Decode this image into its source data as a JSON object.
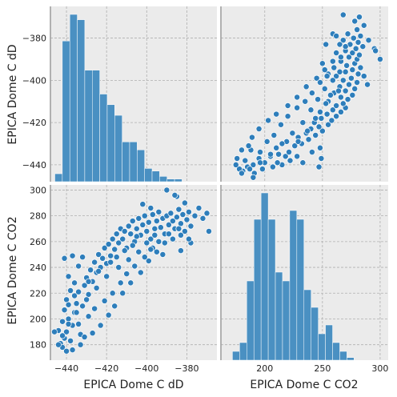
{
  "chart_data": {
    "type": "pairplot",
    "variables": [
      "EPICA Dome C dD",
      "EPICA Dome C CO2"
    ],
    "grid": true,
    "colors": {
      "bar": "#4a90c2",
      "point": "#2e7ebb",
      "panel": "#ebebeb"
    },
    "dD_axis": {
      "label": "EPICA Dome C dD",
      "lim": [
        -448,
        -365
      ],
      "ticks": [
        -440,
        -420,
        -400,
        -380
      ],
      "tick_labels": [
        "−440",
        "−420",
        "−400",
        "−380"
      ]
    },
    "co2_axis": {
      "label": "EPICA Dome C CO2",
      "lim": [
        168,
        304
      ],
      "ticks": [
        180,
        200,
        220,
        240,
        260,
        280,
        300
      ],
      "tick_labels": [
        "180",
        "200",
        "220",
        "240",
        "260",
        "280",
        "300"
      ],
      "x_ticks": [
        200,
        250,
        300
      ],
      "x_tick_labels": [
        "200",
        "250",
        "300"
      ],
      "x_lim": [
        162,
        307
      ]
    },
    "dD_histogram": {
      "bin_start": -445.8,
      "bin_width": 3.73,
      "counts": [
        3,
        53,
        63,
        61,
        42,
        42,
        33,
        29,
        25,
        15,
        15,
        12,
        5,
        4,
        2,
        1,
        1
      ]
    },
    "co2_histogram": {
      "bin_start": 172,
      "bin_width": 6.2,
      "counts": [
        1,
        2,
        9,
        16,
        19,
        16,
        10,
        9,
        17,
        16,
        8,
        6,
        3,
        4,
        2,
        1,
        0.3
      ]
    },
    "scatter_note_none": "",
    "scatter_points": [
      [
        -443,
        181
      ],
      [
        -442,
        178
      ],
      [
        -441,
        185
      ],
      [
        -440,
        190
      ],
      [
        -438,
        183
      ],
      [
        -437,
        195
      ],
      [
        -444,
        191
      ],
      [
        -439,
        200
      ],
      [
        -436,
        205
      ],
      [
        -434,
        196
      ],
      [
        -432,
        210
      ],
      [
        -433,
        188
      ],
      [
        -441,
        207
      ],
      [
        -440,
        215
      ],
      [
        -438,
        222
      ],
      [
        -436,
        218
      ],
      [
        -435,
        212
      ],
      [
        -431,
        226
      ],
      [
        -430,
        232
      ],
      [
        -429,
        219
      ],
      [
        -428,
        238
      ],
      [
        -427,
        229
      ],
      [
        -426,
        244
      ],
      [
        -425,
        236
      ],
      [
        -424,
        250
      ],
      [
        -423,
        240
      ],
      [
        -422,
        247
      ],
      [
        -421,
        255
      ],
      [
        -420,
        243
      ],
      [
        -419,
        258
      ],
      [
        -418,
        249
      ],
      [
        -417,
        262
      ],
      [
        -416,
        254
      ],
      [
        -415,
        266
      ],
      [
        -414,
        259
      ],
      [
        -413,
        270
      ],
      [
        -412,
        262
      ],
      [
        -411,
        268
      ],
      [
        -410,
        255
      ],
      [
        -409,
        272
      ],
      [
        -408,
        266
      ],
      [
        -407,
        276
      ],
      [
        -406,
        260
      ],
      [
        -405,
        270
      ],
      [
        -404,
        278
      ],
      [
        -403,
        265
      ],
      [
        -402,
        273
      ],
      [
        -401,
        280
      ],
      [
        -400,
        268
      ],
      [
        -399,
        275
      ],
      [
        -398,
        262
      ],
      [
        -397,
        281
      ],
      [
        -396,
        270
      ],
      [
        -395,
        276
      ],
      [
        -394,
        283
      ],
      [
        -393,
        271
      ],
      [
        -392,
        278
      ],
      [
        -391,
        266
      ],
      [
        -390,
        280
      ],
      [
        -389,
        273
      ],
      [
        -388,
        282
      ],
      [
        -387,
        276
      ],
      [
        -386,
        270
      ],
      [
        -385,
        279
      ],
      [
        -384,
        285
      ],
      [
        -383,
        274
      ],
      [
        -382,
        281
      ],
      [
        -381,
        268
      ],
      [
        -380,
        277
      ],
      [
        -379,
        283
      ],
      [
        -378,
        272
      ],
      [
        -376,
        280
      ],
      [
        -374,
        286
      ],
      [
        -372,
        278
      ],
      [
        -370,
        282
      ],
      [
        -369,
        268
      ],
      [
        -378,
        259
      ],
      [
        -383,
        253
      ],
      [
        -392,
        250
      ],
      [
        -397,
        255
      ],
      [
        -404,
        252
      ],
      [
        -409,
        246
      ],
      [
        -414,
        240
      ],
      [
        -420,
        233
      ],
      [
        -425,
        224
      ],
      [
        -430,
        215
      ],
      [
        -435,
        205
      ],
      [
        -439,
        196
      ],
      [
        -442,
        187
      ],
      [
        -444,
        180
      ],
      [
        -446,
        190
      ],
      [
        -440,
        175
      ],
      [
        -437,
        176
      ],
      [
        -433,
        180
      ],
      [
        -431,
        186
      ],
      [
        -427,
        189
      ],
      [
        -423,
        195
      ],
      [
        -419,
        203
      ],
      [
        -416,
        210
      ],
      [
        -412,
        220
      ],
      [
        -408,
        228
      ],
      [
        -403,
        236
      ],
      [
        -399,
        245
      ],
      [
        -395,
        252
      ],
      [
        -391,
        259
      ],
      [
        -387,
        262
      ],
      [
        -383,
        265
      ],
      [
        -379,
        262
      ],
      [
        -441,
        247
      ],
      [
        -437,
        249
      ],
      [
        -434,
        241
      ],
      [
        -432,
        248
      ],
      [
        -439,
        233
      ],
      [
        -436,
        228
      ],
      [
        -390,
        300
      ],
      [
        -385,
        295
      ],
      [
        -381,
        290
      ],
      [
        -386,
        296
      ],
      [
        -398,
        286
      ],
      [
        -402,
        289
      ],
      [
        -429,
        202
      ],
      [
        -426,
        208
      ],
      [
        -421,
        214
      ],
      [
        -417,
        220
      ],
      [
        -413,
        228
      ],
      [
        -410,
        235
      ],
      [
        -406,
        241
      ],
      [
        -401,
        248
      ],
      [
        -398,
        254
      ],
      [
        -394,
        260
      ],
      [
        -389,
        266
      ],
      [
        -384,
        270
      ],
      [
        -442,
        198
      ],
      [
        -439,
        211
      ],
      [
        -434,
        221
      ],
      [
        -429,
        229
      ],
      [
        -424,
        237
      ],
      [
        -418,
        244
      ],
      [
        -415,
        248
      ],
      [
        -411,
        253
      ],
      [
        -407,
        257
      ],
      [
        -405,
        264
      ],
      [
        -400,
        259
      ],
      [
        -396,
        265
      ]
    ]
  }
}
